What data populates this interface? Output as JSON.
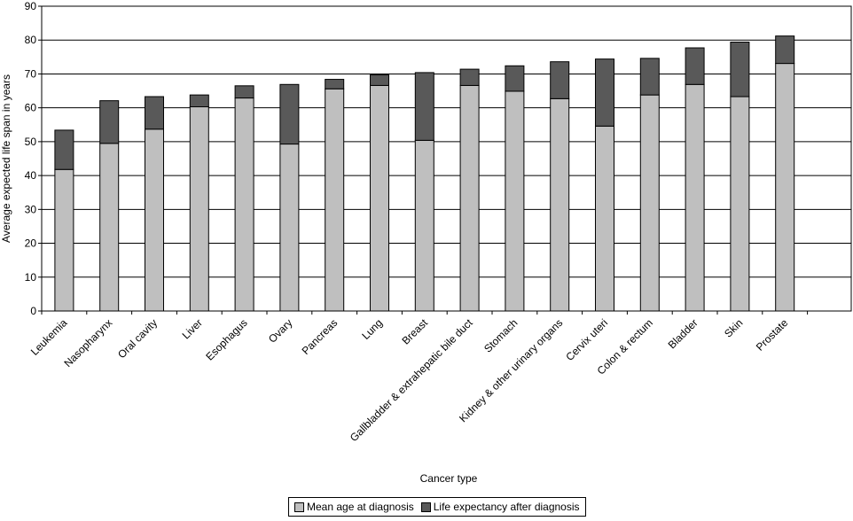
{
  "chart_data": {
    "type": "bar",
    "stacked": true,
    "categories": [
      "Leukemia",
      "Nasopharynx",
      "Oral cavity",
      "Liver",
      "Esophagus",
      "Ovary",
      "Pancreas",
      "Lung",
      "Breast",
      "Gallbladder & extrahepatic bile duct",
      "Stomach",
      "Kidney & other urinary organs",
      "Cervix uteri",
      "Colon & rectum",
      "Bladder",
      "Skin",
      "Prostate"
    ],
    "series": [
      {
        "name": "Mean age at diagnosis",
        "color": "#bfbfbf",
        "values": [
          41.8,
          49.5,
          53.7,
          60.3,
          62.9,
          49.3,
          65.6,
          66.6,
          50.4,
          66.6,
          64.9,
          62.7,
          54.6,
          63.8,
          66.9,
          63.3,
          73.1
        ]
      },
      {
        "name": "Life expectancy after diagnosis",
        "color": "#595959",
        "values": [
          11.6,
          12.6,
          9.6,
          3.5,
          3.6,
          17.6,
          2.8,
          3.1,
          20.0,
          4.8,
          7.5,
          10.9,
          19.8,
          10.8,
          10.8,
          16.1,
          8.1
        ]
      }
    ],
    "xlabel": "Cancer type",
    "ylabel": "Average expected life span in years",
    "ylim": [
      0,
      90
    ],
    "yticks": [
      0,
      10,
      20,
      30,
      40,
      50,
      60,
      70,
      80,
      90
    ],
    "grid": true,
    "legend_position": "bottom"
  }
}
